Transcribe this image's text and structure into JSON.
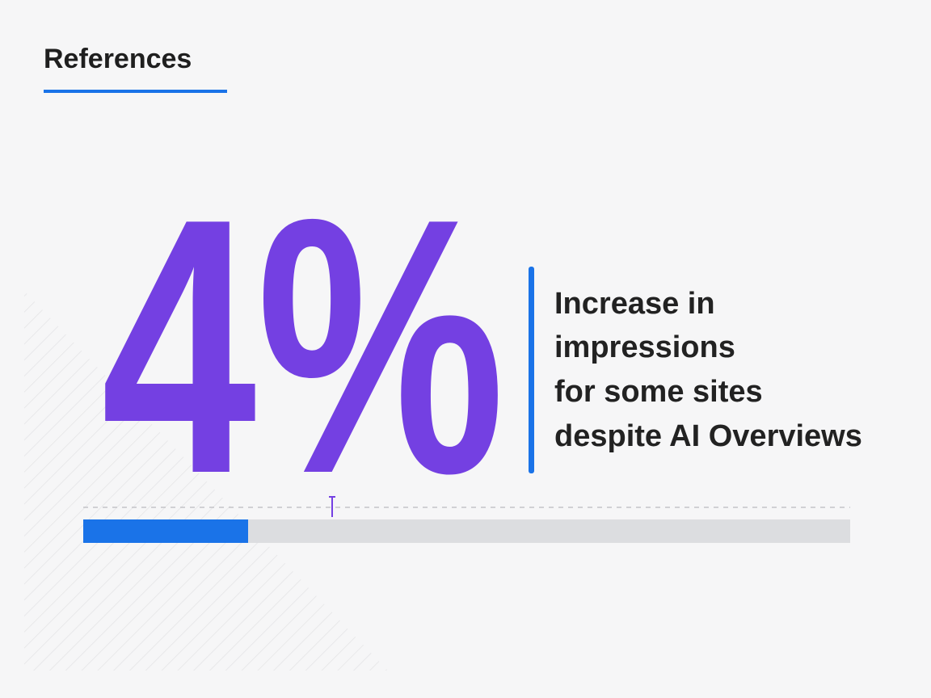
{
  "header": {
    "title": "References"
  },
  "stat": {
    "value": "4%",
    "caption_lines": [
      "Increase in",
      "impressions",
      "for some sites",
      "despite AI Overviews"
    ]
  }
}
